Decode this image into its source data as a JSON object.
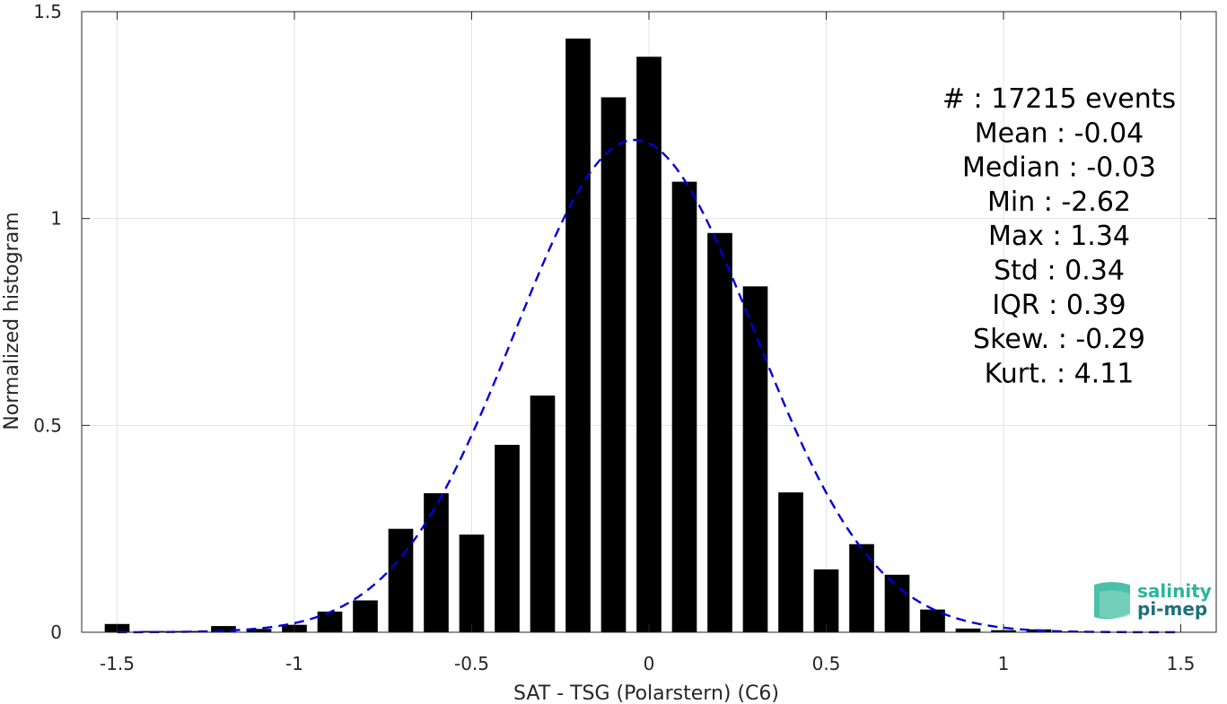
{
  "chart_data": {
    "type": "bar",
    "xlabel": "SAT - TSG (Polarstern) (C6)",
    "ylabel": "Normalized histogram",
    "xlim": [
      -1.6,
      1.6
    ],
    "ylim": [
      0,
      1.5
    ],
    "xticks": [
      -1.5,
      -1,
      -0.5,
      0,
      0.5,
      1,
      1.5
    ],
    "xtick_labels": [
      "-1.5",
      "-1",
      "-0.5",
      "0",
      "0.5",
      "1",
      "1.5"
    ],
    "yticks": [
      0,
      0.5,
      1,
      1.5
    ],
    "ytick_labels": [
      "0",
      "0.5",
      "1",
      "1.5"
    ],
    "grid": true,
    "bin_width": 0.1,
    "bar_width_fraction": 0.7,
    "x": [
      -1.5,
      -1.4,
      -1.3,
      -1.2,
      -1.1,
      -1.0,
      -0.9,
      -0.8,
      -0.7,
      -0.6,
      -0.5,
      -0.4,
      -0.3,
      -0.2,
      -0.1,
      0.0,
      0.1,
      0.2,
      0.3,
      0.4,
      0.5,
      0.6,
      0.7,
      0.8,
      0.9,
      1.0,
      1.1,
      1.2,
      1.3,
      1.4
    ],
    "values": [
      0.02,
      0.003,
      0.003,
      0.015,
      0.008,
      0.018,
      0.05,
      0.077,
      0.25,
      0.336,
      0.236,
      0.453,
      0.572,
      1.435,
      1.293,
      1.391,
      1.089,
      0.965,
      0.836,
      0.338,
      0.152,
      0.213,
      0.139,
      0.055,
      0.009,
      0.005,
      0.007,
      0.002,
      0.001,
      0.001
    ],
    "bar_color": "#000000",
    "fit": {
      "style": "dashed",
      "color": "#0000dd",
      "mean": -0.04,
      "std": 0.34,
      "peak": 1.19
    },
    "stats": [
      {
        "label": "#  ",
        "value": ": 17215 events"
      },
      {
        "label": "Mean",
        "value": ": -0.04"
      },
      {
        "label": "Median",
        "value": ": -0.03"
      },
      {
        "label": "Min",
        "value": ": -2.62"
      },
      {
        "label": "Max",
        "value": ": 1.34"
      },
      {
        "label": "Std",
        "value": ": 0.34"
      },
      {
        "label": "IQR",
        "value": ": 0.39"
      },
      {
        "label": "Skew.",
        "value": ": -0.29"
      },
      {
        "label": "Kurt.",
        "value": ": 4.11"
      }
    ]
  },
  "logo": {
    "line1": "salinity",
    "line2": "pi-mep",
    "color1": "#2bb59a",
    "color2": "#1f6f7a"
  }
}
